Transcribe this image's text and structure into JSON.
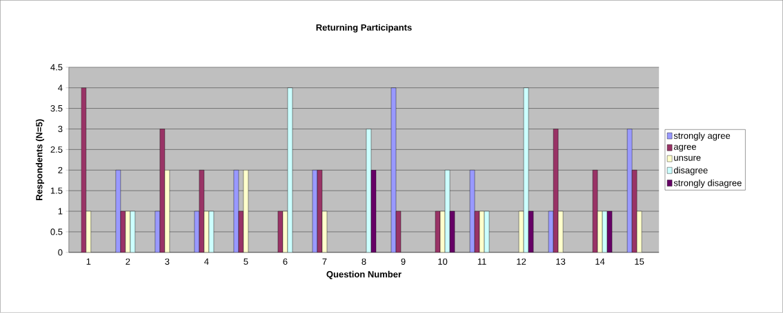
{
  "chart_data": {
    "type": "bar",
    "title": "Returning Participants",
    "xlabel": "Question Number",
    "ylabel": "Respondents (N=5)",
    "categories": [
      "1",
      "2",
      "3",
      "4",
      "5",
      "6",
      "7",
      "8",
      "9",
      "10",
      "11",
      "12",
      "13",
      "14",
      "15"
    ],
    "series": [
      {
        "name": "strongly agree",
        "color": "#9999ff",
        "values": [
          0,
          2,
          1,
          1,
          2,
          0,
          2,
          0,
          4,
          0,
          2,
          0,
          1,
          0,
          3
        ]
      },
      {
        "name": "agree",
        "color": "#993366",
        "values": [
          4,
          1,
          3,
          2,
          1,
          1,
          2,
          0,
          1,
          1,
          1,
          0,
          3,
          2,
          2
        ]
      },
      {
        "name": "unsure",
        "color": "#ffffcc",
        "values": [
          1,
          1,
          2,
          1,
          2,
          1,
          1,
          0,
          0,
          1,
          1,
          1,
          1,
          1,
          1
        ]
      },
      {
        "name": "disagree",
        "color": "#ccffff",
        "values": [
          0,
          1,
          0,
          1,
          0,
          4,
          0,
          3,
          0,
          2,
          1,
          4,
          0,
          1,
          0
        ]
      },
      {
        "name": "strongly disagree",
        "color": "#660066",
        "values": [
          0,
          0,
          0,
          0,
          0,
          0,
          0,
          2,
          0,
          1,
          0,
          1,
          0,
          1,
          0
        ]
      }
    ],
    "ylim": [
      0,
      4.5
    ],
    "yticks": [
      0,
      0.5,
      1,
      1.5,
      2,
      2.5,
      3,
      3.5,
      4,
      4.5
    ],
    "grid": "y",
    "legend": "right"
  }
}
